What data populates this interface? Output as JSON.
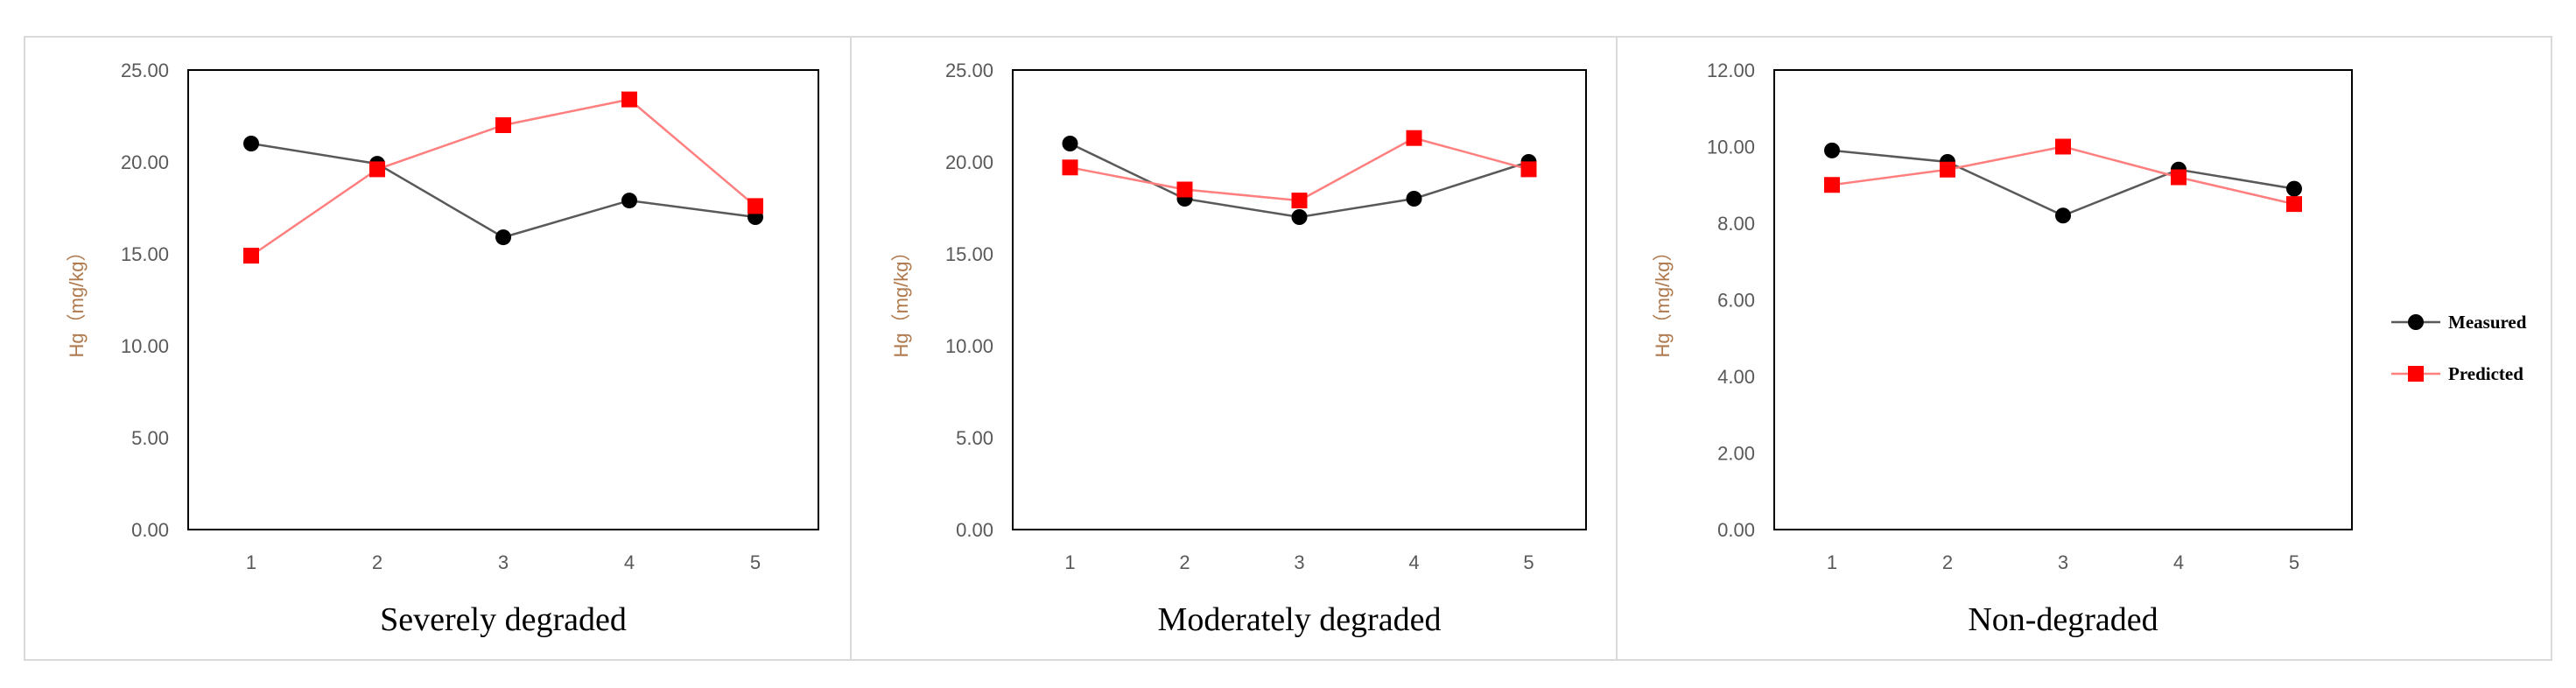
{
  "chart_data": [
    {
      "type": "line",
      "title": "Severely degraded",
      "xlabel": "",
      "ylabel": "Hg（mg/kg）",
      "categories": [
        "1",
        "2",
        "3",
        "4",
        "5"
      ],
      "ylim": [
        0,
        25
      ],
      "yticks": [
        "0.00",
        "5.00",
        "10.00",
        "15.00",
        "20.00",
        "25.00"
      ],
      "series": [
        {
          "name": "Measured",
          "values": [
            21.0,
            19.9,
            15.9,
            17.9,
            17.0
          ]
        },
        {
          "name": "Predicted",
          "values": [
            14.9,
            19.6,
            22.0,
            23.4,
            17.6
          ]
        }
      ]
    },
    {
      "type": "line",
      "title": "Moderately degraded",
      "xlabel": "",
      "ylabel": "Hg（mg/kg）",
      "categories": [
        "1",
        "2",
        "3",
        "4",
        "5"
      ],
      "ylim": [
        0,
        25
      ],
      "yticks": [
        "0.00",
        "5.00",
        "10.00",
        "15.00",
        "20.00",
        "25.00"
      ],
      "series": [
        {
          "name": "Measured",
          "values": [
            21.0,
            18.0,
            17.0,
            18.0,
            20.0
          ]
        },
        {
          "name": "Predicted",
          "values": [
            19.7,
            18.5,
            17.9,
            21.3,
            19.6
          ]
        }
      ]
    },
    {
      "type": "line",
      "title": "Non-degraded",
      "xlabel": "",
      "ylabel": "Hg（mg/kg）",
      "categories": [
        "1",
        "2",
        "3",
        "4",
        "5"
      ],
      "ylim": [
        0,
        12
      ],
      "yticks": [
        "0.00",
        "2.00",
        "4.00",
        "6.00",
        "8.00",
        "10.00",
        "12.00"
      ],
      "series": [
        {
          "name": "Measured",
          "values": [
            9.9,
            9.6,
            8.2,
            9.4,
            8.9
          ]
        },
        {
          "name": "Predicted",
          "values": [
            9.0,
            9.4,
            10.0,
            9.2,
            8.5
          ]
        }
      ]
    }
  ],
  "legend": {
    "placement": "right",
    "items": [
      {
        "label": "Measured",
        "color": "#000000",
        "line_color": "#595959",
        "marker": "circle"
      },
      {
        "label": "Predicted",
        "color": "#ff0000",
        "line_color": "#ff7f7f",
        "marker": "square"
      }
    ]
  },
  "colors": {
    "measured_marker": "#000000",
    "measured_line": "#595959",
    "predicted_marker": "#ff0000",
    "predicted_line": "#ff7f7f",
    "panel_border": "#d9d9d9",
    "plot_border": "#000000"
  }
}
